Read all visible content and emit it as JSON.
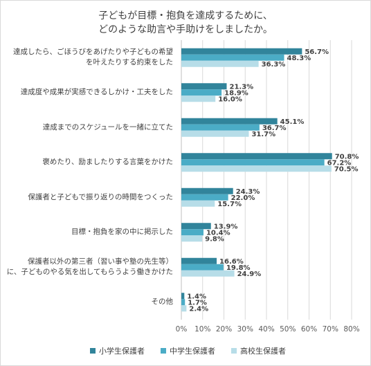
{
  "chart_data": {
    "type": "bar",
    "orientation": "horizontal",
    "title_lines": [
      "子どもが目標・抱負を達成するために、",
      "どのような助言や手助けをしましたか。"
    ],
    "categories": [
      [
        "達成したら、ごほうびをあげたりや子どもの希望",
        "を叶えたりする約束をした"
      ],
      [
        "達成度や成果が実感できるしかけ・工夫をした"
      ],
      [
        "達成までのスケジュールを一緒に立てた"
      ],
      [
        "褒めたり、励ましたりする言葉をかけた"
      ],
      [
        "保護者と子どもで振り返りの時間をつくった"
      ],
      [
        "目標・抱負を家の中に掲示した"
      ],
      [
        "保護者以外の第三者（習い事や塾の先生等）",
        "に、子どものやる気を出してもらうよう働きかけた"
      ],
      [
        "その他"
      ]
    ],
    "series": [
      {
        "name": "小学生保護者",
        "color": "#31849b",
        "values": [
          56.7,
          21.3,
          45.1,
          70.8,
          24.3,
          13.9,
          16.6,
          1.4
        ]
      },
      {
        "name": "中学生保護者",
        "color": "#4bacc6",
        "values": [
          48.3,
          18.9,
          36.7,
          67.2,
          22.0,
          10.4,
          19.8,
          1.7
        ]
      },
      {
        "name": "高校生保護者",
        "color": "#b7dde8",
        "values": [
          36.3,
          16.0,
          31.7,
          70.5,
          15.7,
          9.8,
          24.9,
          2.4
        ]
      }
    ],
    "value_suffix": "%",
    "xlim": [
      0,
      80
    ],
    "xticks": [
      "0%",
      "10%",
      "20%",
      "30%",
      "40%",
      "50%",
      "60%",
      "70%",
      "80%"
    ],
    "grid": true,
    "legend_position": "bottom"
  }
}
